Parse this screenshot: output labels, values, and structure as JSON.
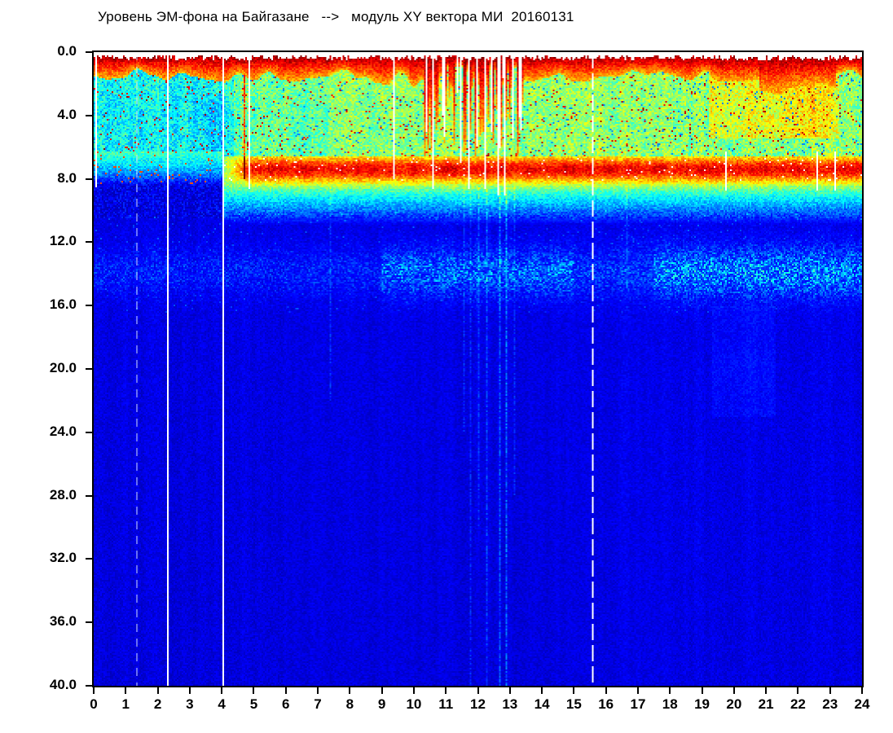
{
  "header": {
    "title": "Уровень ЭМ-фона на Байгазане   -->   модуль XY вектора МИ  20160131"
  },
  "chart_data": {
    "type": "heatmap",
    "subtype": "spectrogram",
    "title": "Уровень ЭМ-фона на Байгазане   -->   модуль XY вектора МИ  20160131",
    "station": "Байгазан",
    "signal": "модуль XY вектора МИ",
    "date": "20160131",
    "xlabel": "",
    "ylabel": "",
    "x_range": [
      0,
      24
    ],
    "y_range": [
      0,
      40
    ],
    "y_axis_inverted": true,
    "grid": false,
    "legend": "none",
    "colormap": "jet",
    "x_ticks": [
      "0",
      "1",
      "2",
      "3",
      "4",
      "5",
      "6",
      "7",
      "8",
      "9",
      "10",
      "11",
      "12",
      "13",
      "14",
      "15",
      "16",
      "17",
      "18",
      "19",
      "20",
      "21",
      "22",
      "23",
      "24"
    ],
    "y_ticks": [
      "0.0",
      "4.0",
      "8.0",
      "12.0",
      "16.0",
      "20.0",
      "24.0",
      "28.0",
      "32.0",
      "36.0",
      "40.0"
    ],
    "colors": {
      "background_deep_blue": "#0000E6",
      "cyan": "#00E8F8",
      "green": "#20DC20",
      "yellow": "#F0F000",
      "red": "#E81800",
      "no_data_white": "#FFFFFF",
      "frame_black": "#000000"
    },
    "features": {
      "background_level": 0.103,
      "surface_cap": {
        "f_top": 0.3,
        "f_bottom_typical": 1.8,
        "level": 0.93
      },
      "main_band": {
        "f_center": 7.4,
        "f_sigma": 0.8,
        "level_strong": 0.33,
        "level_weak": 0.04,
        "strong_from_t": 4.05
      },
      "second_band": {
        "f_center": 13.9,
        "f_sigma": 1.5,
        "levels_by_t": [
          [
            0,
            9,
            0.055
          ],
          [
            9,
            15,
            0.13
          ],
          [
            15,
            17.5,
            0.08
          ],
          [
            17.5,
            24,
            0.16
          ]
        ]
      },
      "weak_blue_zone": {
        "t_end": 4.35,
        "f1": 1.5,
        "f2": 6.3
      },
      "disturbed_interval": {
        "t1": 10.3,
        "t2": 13.4
      },
      "warm_patch": {
        "t1": 19.2,
        "t2": 23.3,
        "f1": 1.0,
        "f2": 5.4
      },
      "thick_cap_interval": {
        "t1": 20.8,
        "t2": 23.2
      },
      "deep_bright_patch": {
        "t1": 19.3,
        "t2": 21.3,
        "f1": 16,
        "f2": 23
      },
      "solid_white_lines_t": [
        2.31,
        4.02
      ],
      "dashed_white_line_t": 15.57,
      "faint_dashed_line_t": 1.32,
      "red_streak_columns_t": [
        4.68
      ],
      "white_gap_columns": [
        [
          0.05,
          8.5
        ],
        [
          4.85,
          8.6
        ],
        [
          9.37,
          8.0
        ],
        [
          10.35,
          5.0
        ],
        [
          10.56,
          8.6
        ],
        [
          10.9,
          4.0
        ],
        [
          11.45,
          7.0
        ],
        [
          11.71,
          8.6
        ],
        [
          11.95,
          6.0
        ],
        [
          12.2,
          8.6
        ],
        [
          12.42,
          5.0
        ],
        [
          12.62,
          9.0
        ],
        [
          12.8,
          9.0
        ],
        [
          13.05,
          5.5
        ]
      ],
      "band_gap_columns_t": [
        19.72,
        22.57,
        23.12
      ],
      "cyan_streaks": [
        [
          7.38,
          8.5,
          22,
          0.05
        ],
        [
          11.55,
          8.5,
          24,
          0.05
        ],
        [
          11.75,
          8.5,
          40,
          0.05
        ],
        [
          12.0,
          8.5,
          30,
          0.05
        ],
        [
          12.25,
          8.5,
          40,
          0.06
        ],
        [
          12.65,
          8.5,
          40,
          0.08
        ],
        [
          12.85,
          8.5,
          40,
          0.1
        ],
        [
          13.1,
          8.5,
          28,
          0.05
        ],
        [
          16.65,
          8.5,
          15,
          0.04
        ]
      ]
    }
  },
  "layout_text": {}
}
